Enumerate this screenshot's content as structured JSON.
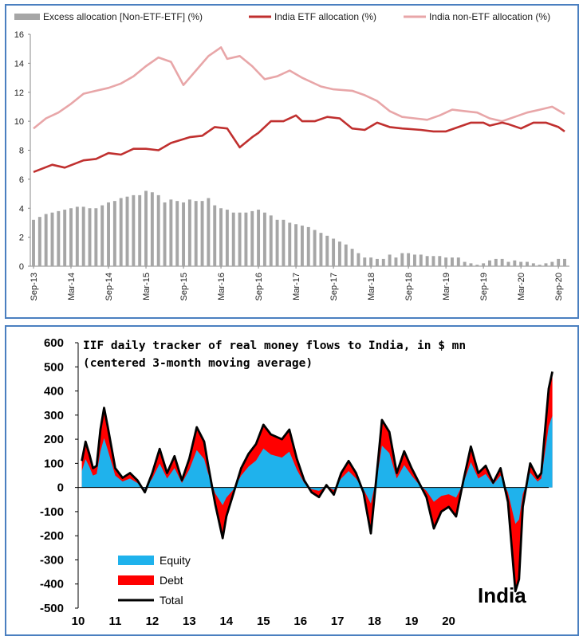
{
  "chart_data": [
    {
      "type": "bar+line",
      "legend": [
        "Excess allocation [Non-ETF-ETF] (%)",
        "India ETF allocation (%)",
        "India non-ETF allocation (%)"
      ],
      "legend_placement": "top",
      "colors": {
        "excess": "#a6a6a6",
        "etf": "#c0302f",
        "non_etf": "#e8a6a8"
      },
      "ylim": [
        0,
        16
      ],
      "yticks": [
        "0",
        "2",
        "4",
        "6",
        "8",
        "10",
        "12",
        "14",
        "16"
      ],
      "xticks": [
        "Sep-13",
        "Mar-14",
        "Sep-14",
        "Mar-15",
        "Sep-15",
        "Mar-16",
        "Sep-16",
        "Mar-17",
        "Sep-17",
        "Mar-18",
        "Sep-18",
        "Mar-19",
        "Sep-19",
        "Mar-20",
        "Sep-20"
      ],
      "months": 85,
      "etf": [
        [
          0,
          6.5
        ],
        [
          3,
          7.0
        ],
        [
          5,
          6.8
        ],
        [
          8,
          7.3
        ],
        [
          10,
          7.4
        ],
        [
          12,
          7.8
        ],
        [
          14,
          7.7
        ],
        [
          16,
          8.1
        ],
        [
          18,
          8.1
        ],
        [
          20,
          8.0
        ],
        [
          22,
          8.5
        ],
        [
          25,
          8.9
        ],
        [
          27,
          9.0
        ],
        [
          29,
          9.6
        ],
        [
          31,
          9.5
        ],
        [
          33,
          8.2
        ],
        [
          35,
          8.9
        ],
        [
          36,
          9.2
        ],
        [
          38,
          10.0
        ],
        [
          40,
          10.0
        ],
        [
          42,
          10.4
        ],
        [
          43,
          10.0
        ],
        [
          45,
          10.0
        ],
        [
          47,
          10.3
        ],
        [
          49,
          10.2
        ],
        [
          51,
          9.5
        ],
        [
          53,
          9.4
        ],
        [
          55,
          9.9
        ],
        [
          57,
          9.6
        ],
        [
          59,
          9.5
        ],
        [
          62,
          9.4
        ],
        [
          64,
          9.3
        ],
        [
          66,
          9.3
        ],
        [
          68,
          9.6
        ],
        [
          70,
          9.9
        ],
        [
          72,
          9.9
        ],
        [
          73,
          9.7
        ],
        [
          75,
          9.9
        ],
        [
          76,
          9.8
        ],
        [
          78,
          9.5
        ],
        [
          80,
          9.9
        ],
        [
          82,
          9.9
        ],
        [
          84,
          9.6
        ],
        [
          85,
          9.3
        ]
      ],
      "non_etf": [
        [
          0,
          9.5
        ],
        [
          2,
          10.2
        ],
        [
          4,
          10.6
        ],
        [
          6,
          11.2
        ],
        [
          8,
          11.9
        ],
        [
          10,
          12.1
        ],
        [
          12,
          12.3
        ],
        [
          14,
          12.6
        ],
        [
          16,
          13.1
        ],
        [
          18,
          13.8
        ],
        [
          20,
          14.4
        ],
        [
          22,
          14.1
        ],
        [
          24,
          12.5
        ],
        [
          26,
          13.5
        ],
        [
          28,
          14.5
        ],
        [
          30,
          15.1
        ],
        [
          31,
          14.3
        ],
        [
          33,
          14.5
        ],
        [
          35,
          13.8
        ],
        [
          37,
          12.9
        ],
        [
          39,
          13.1
        ],
        [
          41,
          13.5
        ],
        [
          43,
          13.0
        ],
        [
          46,
          12.4
        ],
        [
          48,
          12.2
        ],
        [
          51,
          12.1
        ],
        [
          53,
          11.8
        ],
        [
          55,
          11.4
        ],
        [
          57,
          10.7
        ],
        [
          59,
          10.3
        ],
        [
          61,
          10.2
        ],
        [
          63,
          10.1
        ],
        [
          65,
          10.4
        ],
        [
          67,
          10.8
        ],
        [
          69,
          10.7
        ],
        [
          71,
          10.6
        ],
        [
          73,
          10.2
        ],
        [
          75,
          10.0
        ],
        [
          77,
          10.3
        ],
        [
          79,
          10.6
        ],
        [
          81,
          10.8
        ],
        [
          83,
          11.0
        ],
        [
          85,
          10.5
        ]
      ],
      "excess_note": "monthly bars",
      "excess": [
        3.2,
        3.4,
        3.6,
        3.7,
        3.8,
        3.9,
        4.0,
        4.1,
        4.1,
        4.0,
        4.0,
        4.2,
        4.4,
        4.5,
        4.7,
        4.8,
        4.9,
        4.9,
        5.2,
        5.1,
        4.9,
        4.4,
        4.6,
        4.5,
        4.4,
        4.6,
        4.5,
        4.5,
        4.7,
        4.2,
        4.0,
        3.9,
        3.7,
        3.7,
        3.7,
        3.8,
        3.9,
        3.7,
        3.5,
        3.2,
        3.2,
        3.0,
        2.9,
        2.8,
        2.7,
        2.5,
        2.3,
        2.1,
        1.9,
        1.7,
        1.5,
        1.2,
        0.9,
        0.6,
        0.6,
        0.5,
        0.5,
        0.8,
        0.6,
        0.9,
        0.9,
        0.8,
        0.8,
        0.7,
        0.7,
        0.7,
        0.6,
        0.6,
        0.6,
        0.3,
        0.2,
        0.1,
        0.2,
        0.4,
        0.5,
        0.5,
        0.3,
        0.4,
        0.3,
        0.3,
        0.2,
        0.1,
        0.2,
        0.3,
        0.5,
        0.5
      ]
    },
    {
      "type": "area+line",
      "title_lines": [
        "IIF daily tracker of real money flows to India, in $ mn",
        "(centered 3-month moving average)"
      ],
      "country_label": "India",
      "legend": [
        "Equity",
        "Debt",
        "Total"
      ],
      "legend_placement": "bottom-left",
      "colors": {
        "equity": "#1fb2ec",
        "debt": "#ff0000",
        "total": "#000000"
      },
      "ylim": [
        -500,
        600
      ],
      "yticks": [
        "600",
        "500",
        "400",
        "300",
        "200",
        "100",
        "0",
        "-100",
        "-200",
        "-300",
        "-400",
        "-500"
      ],
      "xticks": [
        "10",
        "11",
        "12",
        "13",
        "14",
        "15",
        "16",
        "17",
        "18",
        "19",
        "20"
      ],
      "total": [
        [
          10.1,
          110
        ],
        [
          10.2,
          190
        ],
        [
          10.3,
          140
        ],
        [
          10.4,
          80
        ],
        [
          10.5,
          90
        ],
        [
          10.6,
          240
        ],
        [
          10.7,
          330
        ],
        [
          10.8,
          250
        ],
        [
          11.0,
          80
        ],
        [
          11.2,
          40
        ],
        [
          11.4,
          60
        ],
        [
          11.6,
          30
        ],
        [
          11.8,
          -20
        ],
        [
          12.0,
          60
        ],
        [
          12.2,
          160
        ],
        [
          12.4,
          60
        ],
        [
          12.6,
          130
        ],
        [
          12.8,
          30
        ],
        [
          13.0,
          120
        ],
        [
          13.2,
          250
        ],
        [
          13.4,
          190
        ],
        [
          13.5,
          100
        ],
        [
          13.7,
          -70
        ],
        [
          13.9,
          -210
        ],
        [
          14.0,
          -120
        ],
        [
          14.2,
          -20
        ],
        [
          14.4,
          80
        ],
        [
          14.6,
          140
        ],
        [
          14.8,
          180
        ],
        [
          15.0,
          260
        ],
        [
          15.2,
          220
        ],
        [
          15.5,
          200
        ],
        [
          15.7,
          240
        ],
        [
          15.9,
          120
        ],
        [
          16.1,
          30
        ],
        [
          16.3,
          -20
        ],
        [
          16.5,
          -40
        ],
        [
          16.7,
          10
        ],
        [
          16.9,
          -30
        ],
        [
          17.1,
          60
        ],
        [
          17.3,
          110
        ],
        [
          17.5,
          60
        ],
        [
          17.7,
          -20
        ],
        [
          17.9,
          -190
        ],
        [
          18.1,
          120
        ],
        [
          18.2,
          280
        ],
        [
          18.4,
          230
        ],
        [
          18.6,
          60
        ],
        [
          18.8,
          150
        ],
        [
          19.0,
          80
        ],
        [
          19.2,
          20
        ],
        [
          19.4,
          -40
        ],
        [
          19.6,
          -170
        ],
        [
          19.8,
          -100
        ],
        [
          20.0,
          -80
        ],
        [
          20.2,
          -120
        ],
        [
          20.4,
          30
        ],
        [
          20.6,
          170
        ],
        [
          20.8,
          60
        ],
        [
          21.0,
          90
        ],
        [
          21.2,
          20
        ],
        [
          21.4,
          80
        ],
        [
          21.6,
          -60
        ],
        [
          21.8,
          -430
        ],
        [
          21.9,
          -380
        ],
        [
          22.0,
          -80
        ],
        [
          22.2,
          100
        ],
        [
          22.4,
          40
        ],
        [
          22.5,
          60
        ],
        [
          22.7,
          410
        ],
        [
          22.8,
          480
        ]
      ]
    }
  ]
}
